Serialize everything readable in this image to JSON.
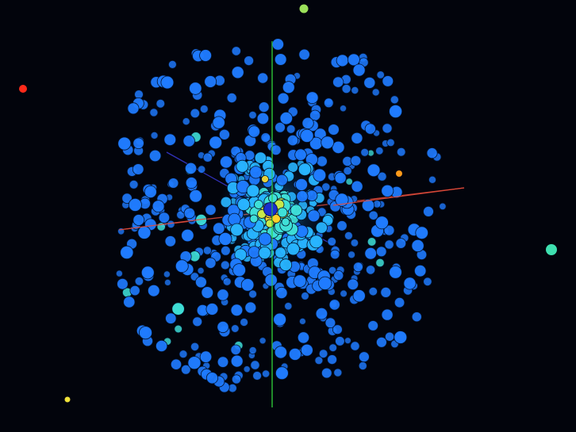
{
  "scene": {
    "background": "#02040c",
    "axes": [
      {
        "name": "x-axis",
        "color": "#e04a3a"
      },
      {
        "name": "y-axis",
        "color": "#2fc83a"
      },
      {
        "name": "z-axis",
        "color": "#3a3ad8"
      }
    ],
    "colormap": [
      "#1f7bff",
      "#28b4ff",
      "#3fe0d8",
      "#c8e84a",
      "#ffd22a"
    ],
    "core_color": "#1a2fd0",
    "outliers": [
      {
        "name": "outlier-red",
        "color": "#ff2a1a"
      },
      {
        "name": "outlier-lime",
        "color": "#9be05a"
      },
      {
        "name": "outlier-teal",
        "color": "#3fe0b0"
      },
      {
        "name": "outlier-yellow",
        "color": "#f0e23a"
      },
      {
        "name": "outlier-orange",
        "color": "#ff9a1a"
      }
    ]
  }
}
